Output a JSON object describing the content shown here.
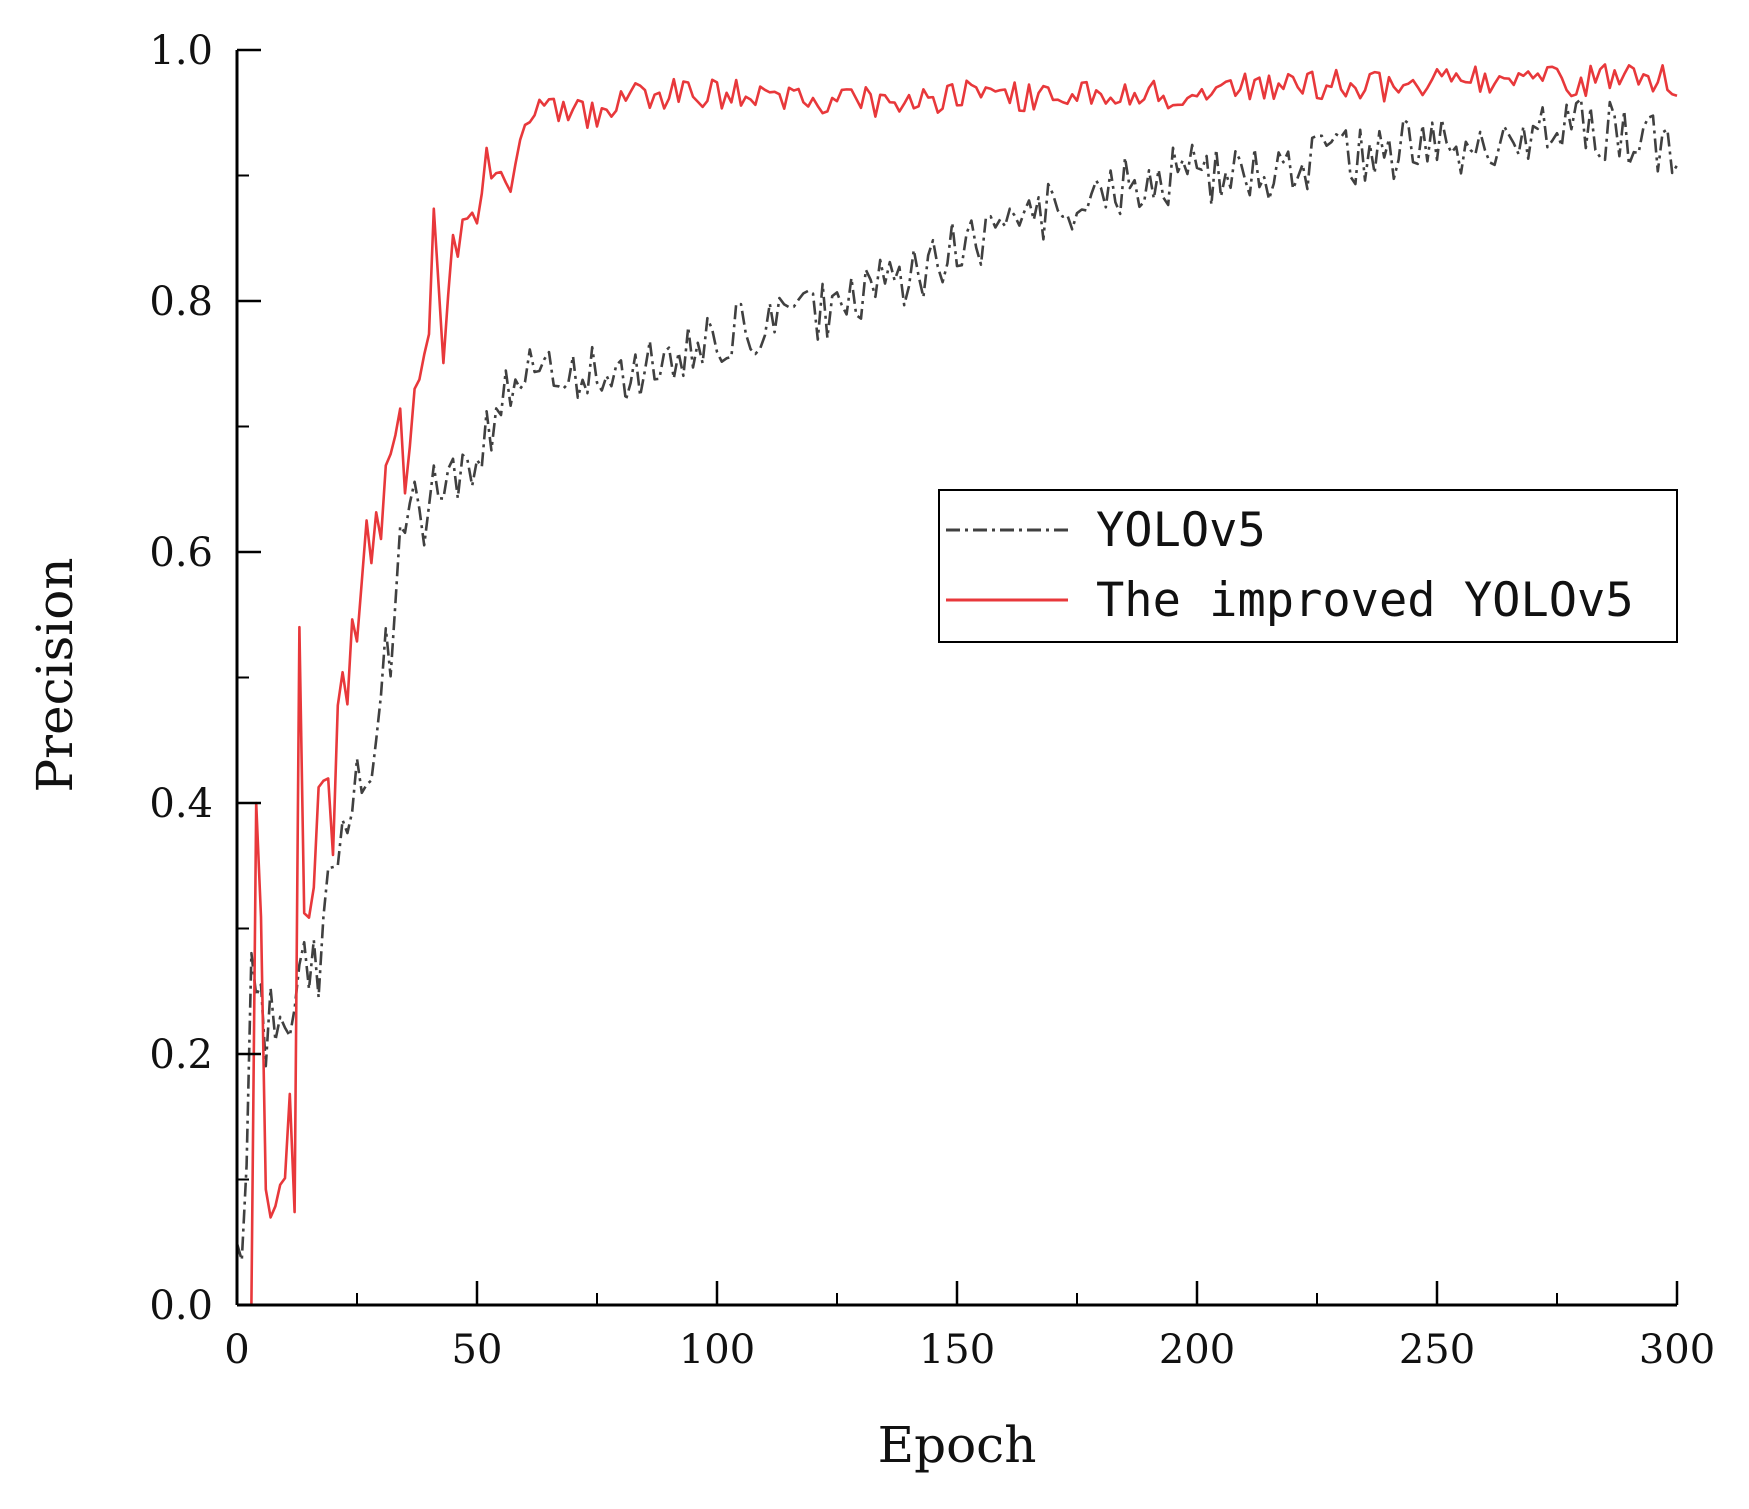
{
  "chart_data": {
    "type": "line",
    "title": "",
    "xlabel": "Epoch",
    "ylabel": "Precision",
    "xlim": [
      0,
      300
    ],
    "ylim": [
      0.0,
      1.0
    ],
    "xticks": [
      0,
      50,
      100,
      150,
      200,
      250,
      300
    ],
    "xtick_labels": [
      "0",
      "50",
      "100",
      "150",
      "200",
      "250",
      "300"
    ],
    "yticks": [
      0.0,
      0.2,
      0.4,
      0.6,
      0.8,
      1.0
    ],
    "ytick_labels": [
      "0.0",
      "0.2",
      "0.4",
      "0.6",
      "0.8",
      "1.0"
    ],
    "grid": false,
    "legend_position": "right",
    "series": [
      {
        "name": "YOLOv5",
        "color": "#404040",
        "style": "dash-dot",
        "anchors": [
          [
            0,
            0.01
          ],
          [
            2,
            0.2
          ],
          [
            4,
            0.22
          ],
          [
            6,
            0.2
          ],
          [
            8,
            0.22
          ],
          [
            10,
            0.22
          ],
          [
            12,
            0.26
          ],
          [
            14,
            0.28
          ],
          [
            16,
            0.26
          ],
          [
            18,
            0.3
          ],
          [
            20,
            0.33
          ],
          [
            22,
            0.38
          ],
          [
            25,
            0.42
          ],
          [
            28,
            0.44
          ],
          [
            30,
            0.48
          ],
          [
            33,
            0.56
          ],
          [
            35,
            0.64
          ],
          [
            38,
            0.62
          ],
          [
            40,
            0.65
          ],
          [
            45,
            0.66
          ],
          [
            50,
            0.68
          ],
          [
            55,
            0.72
          ],
          [
            60,
            0.74
          ],
          [
            70,
            0.74
          ],
          [
            80,
            0.74
          ],
          [
            90,
            0.75
          ],
          [
            100,
            0.77
          ],
          [
            110,
            0.78
          ],
          [
            120,
            0.79
          ],
          [
            130,
            0.8
          ],
          [
            140,
            0.82
          ],
          [
            150,
            0.84
          ],
          [
            160,
            0.86
          ],
          [
            170,
            0.87
          ],
          [
            180,
            0.88
          ],
          [
            190,
            0.9
          ],
          [
            200,
            0.9
          ],
          [
            210,
            0.9
          ],
          [
            220,
            0.91
          ],
          [
            230,
            0.91
          ],
          [
            240,
            0.92
          ],
          [
            250,
            0.93
          ],
          [
            260,
            0.92
          ],
          [
            270,
            0.93
          ],
          [
            280,
            0.94
          ],
          [
            290,
            0.93
          ],
          [
            300,
            0.92
          ]
        ],
        "noise": [
          0.1,
          0.1,
          0.08,
          0.06,
          0.05,
          0.05,
          0.05,
          0.045,
          0.045,
          0.045,
          0.05,
          0.05,
          0.05,
          0.05,
          0.04,
          0.035,
          0.03,
          0.03,
          0.025,
          0.025,
          0.025,
          0.025,
          0.025,
          0.025,
          0.025,
          0.025,
          0.025,
          0.025,
          0.025,
          0.025,
          0.025,
          0.025,
          0.025,
          0.025,
          0.025,
          0.025,
          0.025,
          0.025,
          0.025,
          0.025,
          0.025,
          0.025,
          0.025,
          0.025,
          0.025,
          0.025,
          0.025
        ]
      },
      {
        "name": "The improved YOLOv5",
        "color": "#e8383b",
        "style": "solid",
        "anchors": [
          [
            0,
            0.0
          ],
          [
            2,
            0.0
          ],
          [
            3,
            0.0
          ],
          [
            4,
            0.4
          ],
          [
            5,
            0.3
          ],
          [
            6,
            0.12
          ],
          [
            7,
            0.07
          ],
          [
            8,
            0.08
          ],
          [
            10,
            0.1
          ],
          [
            11,
            0.16
          ],
          [
            12,
            0.09
          ],
          [
            13,
            0.54
          ],
          [
            14,
            0.3
          ],
          [
            15,
            0.28
          ],
          [
            17,
            0.42
          ],
          [
            18,
            0.4
          ],
          [
            20,
            0.38
          ],
          [
            21,
            0.5
          ],
          [
            23,
            0.5
          ],
          [
            25,
            0.55
          ],
          [
            27,
            0.64
          ],
          [
            28,
            0.59
          ],
          [
            30,
            0.63
          ],
          [
            32,
            0.66
          ],
          [
            34,
            0.69
          ],
          [
            36,
            0.66
          ],
          [
            38,
            0.76
          ],
          [
            40,
            0.8
          ],
          [
            41,
            0.86
          ],
          [
            43,
            0.74
          ],
          [
            45,
            0.84
          ],
          [
            48,
            0.86
          ],
          [
            50,
            0.88
          ],
          [
            52,
            0.91
          ],
          [
            55,
            0.91
          ],
          [
            57,
            0.88
          ],
          [
            60,
            0.94
          ],
          [
            63,
            0.95
          ],
          [
            66,
            0.95
          ],
          [
            70,
            0.95
          ],
          [
            75,
            0.95
          ],
          [
            80,
            0.96
          ],
          [
            90,
            0.965
          ],
          [
            100,
            0.965
          ],
          [
            110,
            0.965
          ],
          [
            120,
            0.96
          ],
          [
            130,
            0.96
          ],
          [
            140,
            0.955
          ],
          [
            150,
            0.965
          ],
          [
            160,
            0.965
          ],
          [
            170,
            0.96
          ],
          [
            180,
            0.965
          ],
          [
            190,
            0.965
          ],
          [
            200,
            0.965
          ],
          [
            210,
            0.97
          ],
          [
            220,
            0.97
          ],
          [
            230,
            0.975
          ],
          [
            240,
            0.97
          ],
          [
            250,
            0.975
          ],
          [
            260,
            0.975
          ],
          [
            270,
            0.975
          ],
          [
            280,
            0.975
          ],
          [
            290,
            0.98
          ],
          [
            300,
            0.975
          ]
        ],
        "noise": [
          0,
          0,
          0,
          0.04,
          0.04,
          0.02,
          0.01,
          0.01,
          0.01,
          0.02,
          0.02,
          0.03,
          0.03,
          0.03,
          0.03,
          0.03,
          0.03,
          0.03,
          0.03,
          0.03,
          0.03,
          0.03,
          0.025,
          0.025,
          0.03,
          0.03,
          0.03,
          0.03,
          0.025,
          0.02,
          0.02,
          0.02,
          0.015,
          0.015,
          0.015,
          0.012,
          0.012,
          0.012,
          0.012,
          0.012,
          0.012,
          0.012,
          0.012,
          0.012,
          0.012,
          0.012,
          0.012,
          0.012,
          0.012,
          0.012,
          0.012,
          0.012,
          0.012,
          0.012,
          0.012,
          0.012,
          0.012,
          0.012,
          0.012,
          0.012,
          0.012,
          0.012,
          0.012
        ]
      }
    ]
  }
}
